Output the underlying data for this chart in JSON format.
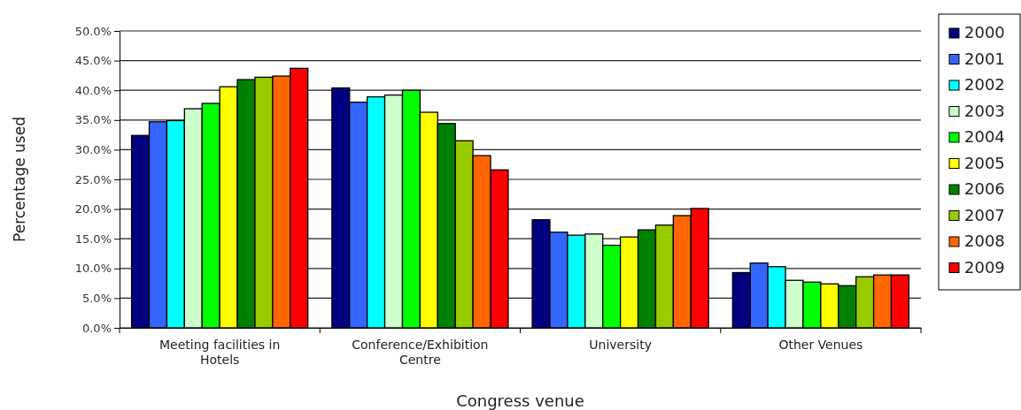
{
  "chart_data": {
    "type": "bar",
    "xlabel": "Congress venue",
    "ylabel": "Percentage used",
    "categories": [
      "Meeting facilities in Hotels",
      "Conference/Exhibition Centre",
      "University",
      "Other Venues"
    ],
    "series": [
      {
        "name": "2000",
        "color": "#000080",
        "values": [
          32.4,
          40.4,
          18.2,
          9.3
        ]
      },
      {
        "name": "2001",
        "color": "#3366ff",
        "values": [
          34.7,
          38.0,
          16.1,
          10.9
        ]
      },
      {
        "name": "2002",
        "color": "#00ffff",
        "values": [
          34.9,
          38.9,
          15.6,
          10.3
        ]
      },
      {
        "name": "2003",
        "color": "#ccffcc",
        "values": [
          36.9,
          39.2,
          15.8,
          8.0
        ]
      },
      {
        "name": "2004",
        "color": "#00ff00",
        "values": [
          37.8,
          40.0,
          13.9,
          7.7
        ]
      },
      {
        "name": "2005",
        "color": "#ffff00",
        "values": [
          40.6,
          36.3,
          15.3,
          7.4
        ]
      },
      {
        "name": "2006",
        "color": "#008000",
        "values": [
          41.8,
          34.4,
          16.5,
          7.1
        ]
      },
      {
        "name": "2007",
        "color": "#99cc00",
        "values": [
          42.2,
          31.5,
          17.3,
          8.6
        ]
      },
      {
        "name": "2008",
        "color": "#ff6600",
        "values": [
          42.4,
          29.0,
          18.9,
          8.9
        ]
      },
      {
        "name": "2009",
        "color": "#ff0000",
        "values": [
          43.7,
          26.6,
          20.1,
          8.9
        ]
      }
    ],
    "ylim": [
      0,
      50
    ],
    "yticks": [
      {
        "value": 0,
        "label": "0.0%"
      },
      {
        "value": 5,
        "label": "5.0%"
      },
      {
        "value": 10,
        "label": "10.0%"
      },
      {
        "value": 15,
        "label": "15.0%"
      },
      {
        "value": 20,
        "label": "20.0%"
      },
      {
        "value": 25,
        "label": "25.0%"
      },
      {
        "value": 30,
        "label": "30.0%"
      },
      {
        "value": 35,
        "label": "35.0%"
      },
      {
        "value": 40,
        "label": "40.0%"
      },
      {
        "value": 45,
        "label": "45.0%"
      },
      {
        "value": 50,
        "label": "50.0%"
      }
    ],
    "grid": "y",
    "legend": "right"
  }
}
